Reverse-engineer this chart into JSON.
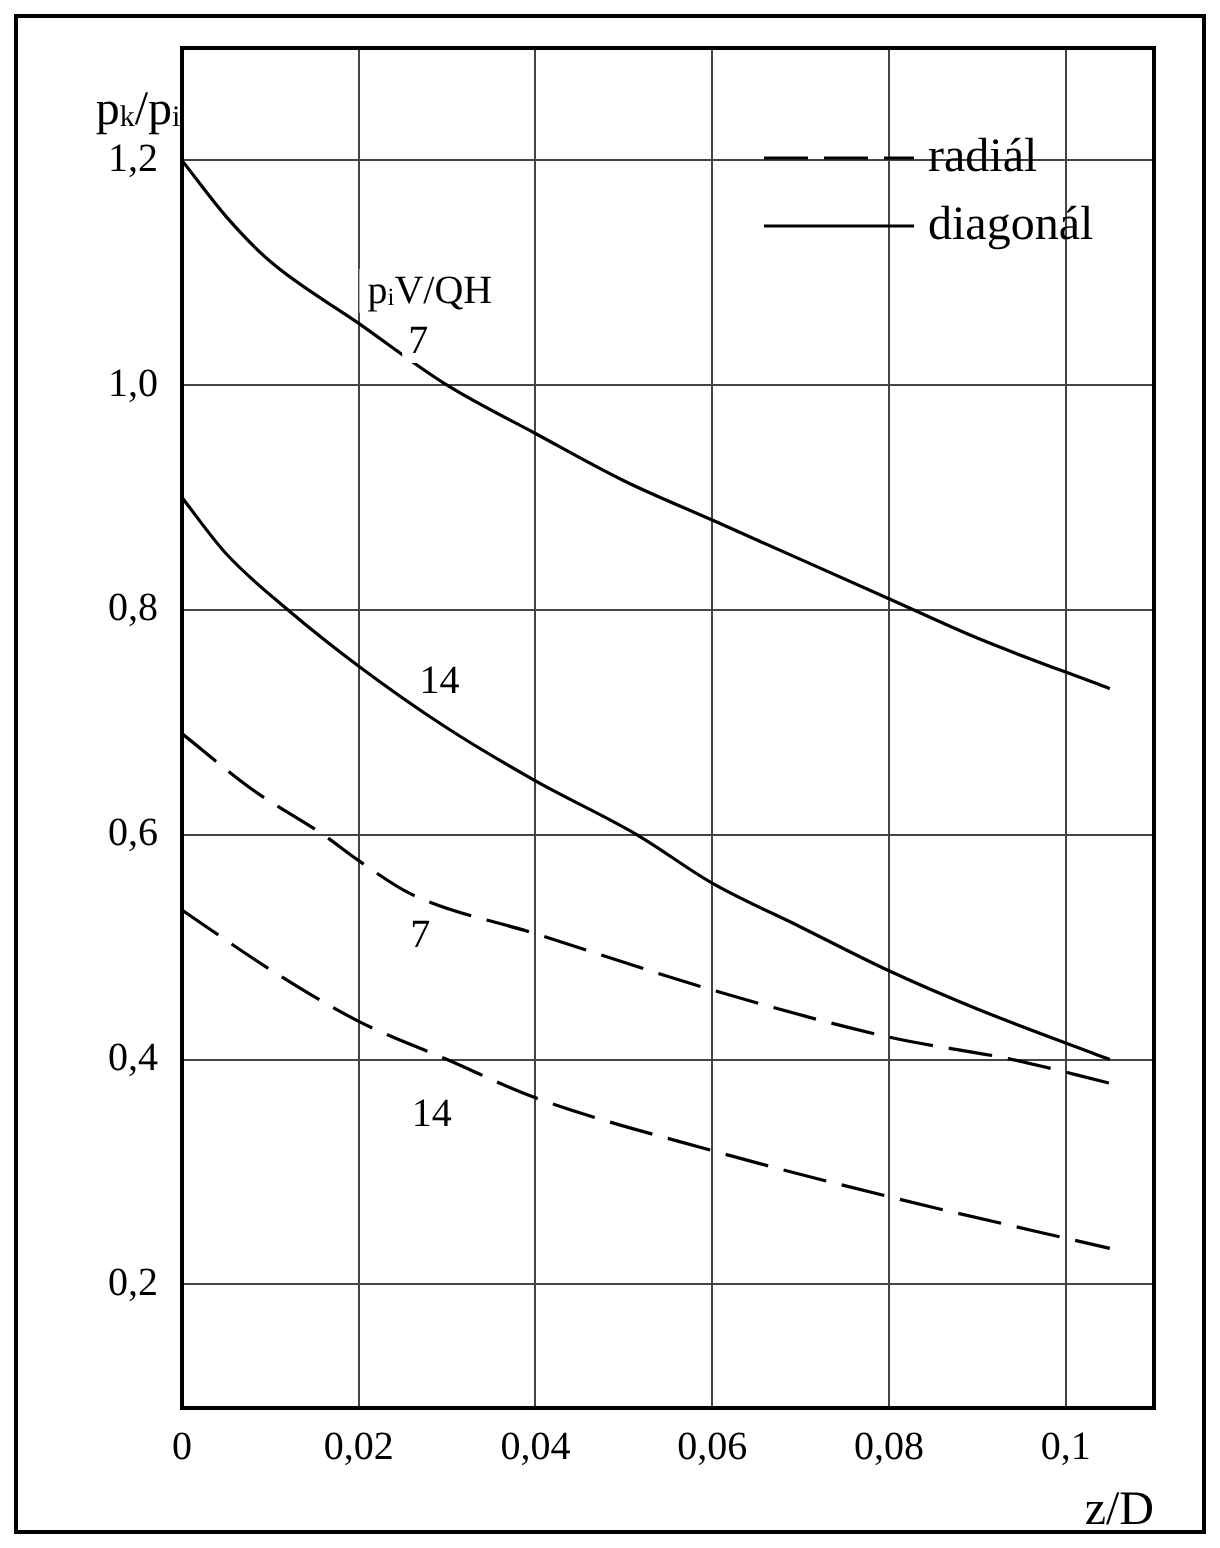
{
  "chart_data": {
    "type": "line",
    "xlabel": "z/D",
    "ylabel": "p$_{k}$/p$_{i}$",
    "xlim": [
      0,
      0.11
    ],
    "ylim": [
      0.09,
      1.3
    ],
    "xticks": [
      0,
      {
        "value": 0.02,
        "label": "0,02"
      },
      {
        "value": 0.04,
        "label": "0,04"
      },
      {
        "value": 0.06,
        "label": "0,06"
      },
      {
        "value": 0.08,
        "label": "0,08"
      },
      {
        "value": 0.1,
        "label": "0,1"
      }
    ],
    "yticks": [
      {
        "value": 0.2,
        "label": "0,2"
      },
      {
        "value": 0.4,
        "label": "0,4"
      },
      {
        "value": 0.6,
        "label": "0,6"
      },
      {
        "value": 0.8,
        "label": "0,8"
      },
      {
        "value": 1.0,
        "label": "1,0"
      },
      {
        "value": 1.2,
        "label": "1,2"
      }
    ],
    "grid": true,
    "legend": "top right",
    "marker": "none",
    "series": [
      {
        "name": "radiál",
        "color": "#000000",
        "line_style": "dashed",
        "x": [
          0,
          0.008,
          0.016,
          0.02,
          0.026,
          0.04,
          0.06,
          0.08,
          0.094,
          0.105
        ],
        "values": [
          0.69,
          0.64,
          0.6,
          0.577,
          0.547,
          0.512,
          0.462,
          0.42,
          0.4,
          0.379
        ]
      },
      {
        "name": "diagonál",
        "color": "#000000",
        "line_style": "solid",
        "x": [
          0,
          0.005,
          0.01,
          0.02,
          0.03,
          0.04,
          0.05,
          0.06,
          0.07,
          0.08,
          0.09,
          0.105
        ],
        "values": [
          1.2,
          1.15,
          1.11,
          1.055,
          1.0,
          0.957,
          0.915,
          0.88,
          0.845,
          0.81,
          0.775,
          0.73
        ]
      },
      {
        "color": "#000000",
        "line_style": "solid",
        "x": [
          0,
          0.005,
          0.012,
          0.02,
          0.03,
          0.04,
          0.0515,
          0.06,
          0.07,
          0.08,
          0.09,
          0.105
        ],
        "values": [
          0.9,
          0.85,
          0.8,
          0.75,
          0.695,
          0.648,
          0.6,
          0.557,
          0.518,
          0.479,
          0.445,
          0.4
        ]
      },
      {
        "color": "#000000",
        "line_style": "dashed",
        "x": [
          0,
          0.01,
          0.02,
          0.03,
          0.04,
          0.06,
          0.08,
          0.105
        ],
        "values": [
          0.533,
          0.48,
          0.434,
          0.4,
          0.366,
          0.319,
          0.278,
          0.232
        ]
      }
    ],
    "annotations": [
      "p$_{i}$V/QH",
      "7",
      "14",
      "7",
      "14"
    ]
  }
}
